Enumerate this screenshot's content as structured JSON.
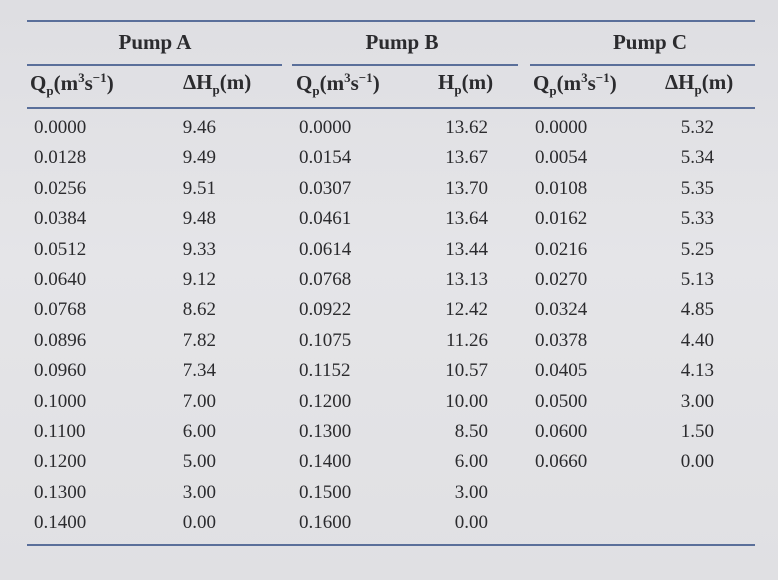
{
  "groups": [
    {
      "title": "Pump A"
    },
    {
      "title": "Pump B"
    },
    {
      "title": "Pump C"
    }
  ],
  "headers": {
    "a_q": {
      "base": "Q",
      "sub": "p",
      "unit_pre": "(m",
      "sup1": "3",
      "unit_mid": "s",
      "sup2": "−1",
      "unit_post": ")"
    },
    "a_h": "ΔH",
    "a_h_sub": "p",
    "a_h_unit": "(m)",
    "b_q": {
      "base": "Q",
      "sub": "p",
      "unit_pre": "(m",
      "sup1": "3",
      "unit_mid": "s",
      "sup2": "−1",
      "unit_post": ")"
    },
    "b_h": "H",
    "b_h_sub": "p",
    "b_h_unit": "(m)",
    "c_q": {
      "base": "Q",
      "sub": "p",
      "unit_pre": "(m",
      "sup1": "3",
      "unit_mid": "s",
      "sup2": "−1",
      "unit_post": ")"
    },
    "c_h": "ΔH",
    "c_h_sub": "p",
    "c_h_unit": "(m)"
  },
  "rows": [
    [
      "0.0000",
      "9.46",
      "0.0000",
      "13.62",
      "0.0000",
      "5.32"
    ],
    [
      "0.0128",
      "9.49",
      "0.0154",
      "13.67",
      "0.0054",
      "5.34"
    ],
    [
      "0.0256",
      "9.51",
      "0.0307",
      "13.70",
      "0.0108",
      "5.35"
    ],
    [
      "0.0384",
      "9.48",
      "0.0461",
      "13.64",
      "0.0162",
      "5.33"
    ],
    [
      "0.0512",
      "9.33",
      "0.0614",
      "13.44",
      "0.0216",
      "5.25"
    ],
    [
      "0.0640",
      "9.12",
      "0.0768",
      "13.13",
      "0.0270",
      "5.13"
    ],
    [
      "0.0768",
      "8.62",
      "0.0922",
      "12.42",
      "0.0324",
      "4.85"
    ],
    [
      "0.0896",
      "7.82",
      "0.1075",
      "11.26",
      "0.0378",
      "4.40"
    ],
    [
      "0.0960",
      "7.34",
      "0.1152",
      "10.57",
      "0.0405",
      "4.13"
    ],
    [
      "0.1000",
      "7.00",
      "0.1200",
      "10.00",
      "0.0500",
      "3.00"
    ],
    [
      "0.1100",
      "6.00",
      "0.1300",
      "8.50",
      "0.0600",
      "1.50"
    ],
    [
      "0.1200",
      "5.00",
      "0.1400",
      "6.00",
      "0.0660",
      "0.00"
    ],
    [
      "0.1300",
      "3.00",
      "0.1500",
      "3.00",
      "",
      ""
    ],
    [
      "0.1400",
      "0.00",
      "0.1600",
      "0.00",
      "",
      ""
    ]
  ]
}
